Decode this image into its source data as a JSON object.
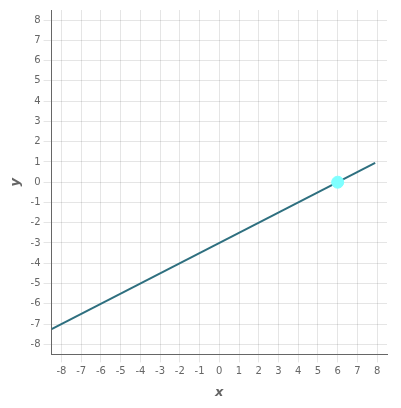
{
  "chart_data": {
    "type": "line",
    "axis_label_x": "x",
    "axis_label_y": "y",
    "series": [
      {
        "type": "line",
        "color": "#2e6f7f",
        "line_style": "solid",
        "x": [
          -8.5,
          7.9
        ],
        "values": [
          -7.25,
          0.95
        ]
      },
      {
        "type": "scatter",
        "color": "#7fffff",
        "marker": "circle",
        "x": [
          6
        ],
        "values": [
          0
        ]
      }
    ],
    "xlim": [
      -8.5,
      8.5
    ],
    "ylim": [
      -8.5,
      8.5
    ],
    "xticks": [
      -8,
      -7,
      -6,
      -5,
      -4,
      -3,
      -2,
      -1,
      0,
      1,
      2,
      3,
      4,
      5,
      6,
      7,
      8
    ],
    "yticks": [
      -8,
      -7,
      -6,
      -5,
      -4,
      -3,
      -2,
      -1,
      0,
      1,
      2,
      3,
      4,
      5,
      6,
      7,
      8
    ],
    "grid": true
  }
}
